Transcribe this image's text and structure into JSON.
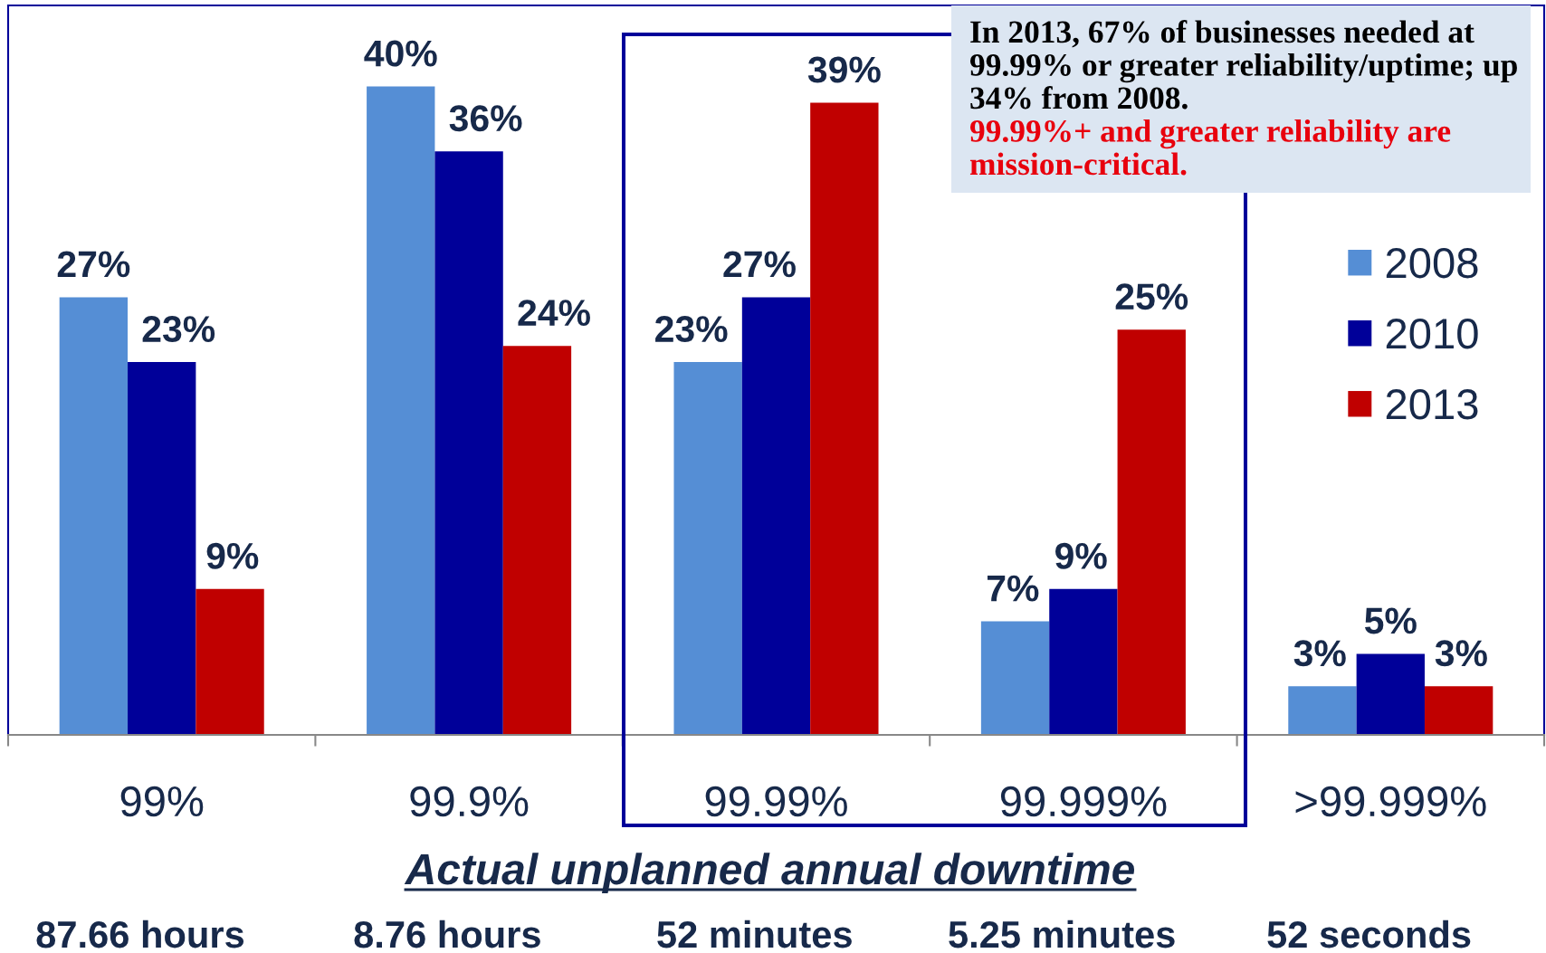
{
  "chart_data": {
    "type": "bar",
    "categories": [
      "99%",
      "99.9%",
      "99.99%",
      "99.999%",
      ">99.999%"
    ],
    "series": [
      {
        "name": "2008",
        "color": "#558ed5",
        "values": [
          27,
          40,
          23,
          7,
          3
        ],
        "value_labels": [
          "27%",
          "40%",
          "23%",
          "7%",
          "3%"
        ]
      },
      {
        "name": "2010",
        "color": "#000099",
        "values": [
          23,
          36,
          27,
          9,
          5
        ],
        "value_labels": [
          "23%",
          "36%",
          "27%",
          "9%",
          "5%"
        ]
      },
      {
        "name": "2013",
        "color": "#c00000",
        "values": [
          9,
          24,
          39,
          25,
          3
        ],
        "value_labels": [
          "9%",
          "24%",
          "39%",
          "25%",
          "3%"
        ]
      }
    ],
    "xlabel": "Actual unplanned annual downtime",
    "legend": "right",
    "annotations": [
      "In 2013, 67% of businesses needed at 99.99% or greater reliability/uptime; up 34% from 2008.",
      "99.99%+ and greater reliability are mission-critical.",
      "87.66 hours",
      "8.76 hours",
      "52 minutes",
      "5.25 minutes",
      "52 seconds"
    ]
  }
}
